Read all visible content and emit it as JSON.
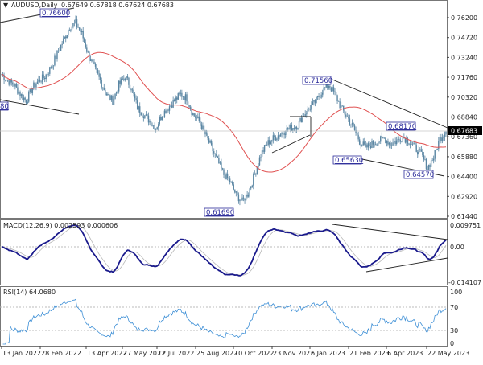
{
  "header": {
    "symbol": "AUDUSD,Daily",
    "ohlc": "0.67649 0.67818 0.67624 0.67683",
    "menu_icon": "triangle-down-icon"
  },
  "colors": {
    "candles": "#5a86a3",
    "moving_average": "#e05050",
    "macd_main": "#1a1a8c",
    "macd_signal": "#b8b8b8",
    "rsi": "#3d8fd6",
    "price_label": "#2b2b9a",
    "current_price_bg": "#000000"
  },
  "chart_data": [
    {
      "type": "candlestick",
      "title": "AUDUSD,Daily",
      "y_ticks": [
        "0.76200",
        "0.74720",
        "0.73240",
        "0.71760",
        "0.70320",
        "0.68840",
        "0.67360",
        "0.65880",
        "0.64400",
        "0.62920",
        "0.61440"
      ],
      "ylim": [
        0.6144,
        0.762
      ],
      "x_labels": [
        "13 Jan 2022",
        "28 Feb 2022",
        "13 Apr 2022",
        "27 May 2022",
        "12 Jul 2022",
        "25 Aug 2022",
        "10 Oct 2022",
        "23 Nov 2022",
        "6 Jan 2023",
        "21 Feb 2023",
        "6 Apr 2023",
        "22 May 2023"
      ],
      "weekly_closes": [
        0.72,
        0.715,
        0.712,
        0.705,
        0.7,
        0.71,
        0.715,
        0.718,
        0.725,
        0.735,
        0.745,
        0.755,
        0.758,
        0.75,
        0.735,
        0.725,
        0.715,
        0.705,
        0.7,
        0.712,
        0.718,
        0.71,
        0.695,
        0.69,
        0.685,
        0.68,
        0.69,
        0.695,
        0.7,
        0.705,
        0.702,
        0.69,
        0.685,
        0.675,
        0.665,
        0.655,
        0.645,
        0.64,
        0.63,
        0.625,
        0.632,
        0.645,
        0.66,
        0.668,
        0.672,
        0.675,
        0.678,
        0.68,
        0.682,
        0.69,
        0.695,
        0.7,
        0.708,
        0.712,
        0.705,
        0.695,
        0.688,
        0.68,
        0.67,
        0.665,
        0.668,
        0.67,
        0.672,
        0.668,
        0.67,
        0.673,
        0.67,
        0.665,
        0.66,
        0.65,
        0.658,
        0.672,
        0.677
      ],
      "current_price": "0.67683",
      "annotations": {
        "high_2022": "0.76600",
        "left_partial": "80",
        "high_jan_2023": "0.71560",
        "low_oct_2022": "0.61690",
        "high_apr_2023": "0.68170",
        "low_feb_2023": "0.65630",
        "low_may_2023": "0.64570"
      },
      "grid": false
    },
    {
      "type": "line",
      "title": "MACD(12,26,9) 0.002593 0.000606",
      "y_ticks": [
        "0.009751",
        "0.00",
        "-0.014107"
      ],
      "ylim": [
        -0.014107,
        0.009751
      ]
    },
    {
      "type": "line",
      "title": "RSI(14) 64.0680",
      "y_ticks": [
        "100",
        "70",
        "30",
        "0"
      ],
      "ylim": [
        0,
        100
      ],
      "levels": [
        70,
        30
      ]
    }
  ]
}
